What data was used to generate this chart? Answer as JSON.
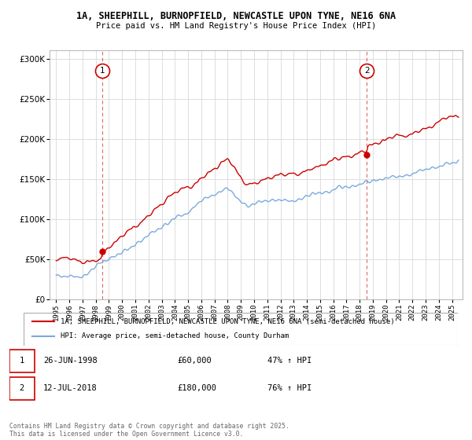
{
  "title_line1": "1A, SHEEPHILL, BURNOPFIELD, NEWCASTLE UPON TYNE, NE16 6NA",
  "title_line2": "Price paid vs. HM Land Registry's House Price Index (HPI)",
  "legend_label1": "1A, SHEEPHILL, BURNOPFIELD, NEWCASTLE UPON TYNE, NE16 6NA (semi-detached house)",
  "legend_label2": "HPI: Average price, semi-detached house, County Durham",
  "footnote": "Contains HM Land Registry data © Crown copyright and database right 2025.\nThis data is licensed under the Open Government Licence v3.0.",
  "sale1_date": "26-JUN-1998",
  "sale1_price": "£60,000",
  "sale1_hpi": "47% ↑ HPI",
  "sale2_date": "12-JUL-2018",
  "sale2_price": "£180,000",
  "sale2_hpi": "76% ↑ HPI",
  "sale1_x": 1998.49,
  "sale1_y": 60000,
  "sale2_x": 2018.54,
  "sale2_y": 180000,
  "red_color": "#cc0000",
  "blue_color": "#7aaadd",
  "background_color": "#ffffff",
  "grid_color": "#dddddd",
  "ylim": [
    0,
    310000
  ],
  "xlim": [
    1994.5,
    2025.8
  ],
  "yticks": [
    0,
    50000,
    100000,
    150000,
    200000,
    250000,
    300000
  ],
  "xticks": [
    1995,
    1996,
    1997,
    1998,
    1999,
    2000,
    2001,
    2002,
    2003,
    2004,
    2005,
    2006,
    2007,
    2008,
    2009,
    2010,
    2011,
    2012,
    2013,
    2014,
    2015,
    2016,
    2017,
    2018,
    2019,
    2020,
    2021,
    2022,
    2023,
    2024,
    2025
  ]
}
